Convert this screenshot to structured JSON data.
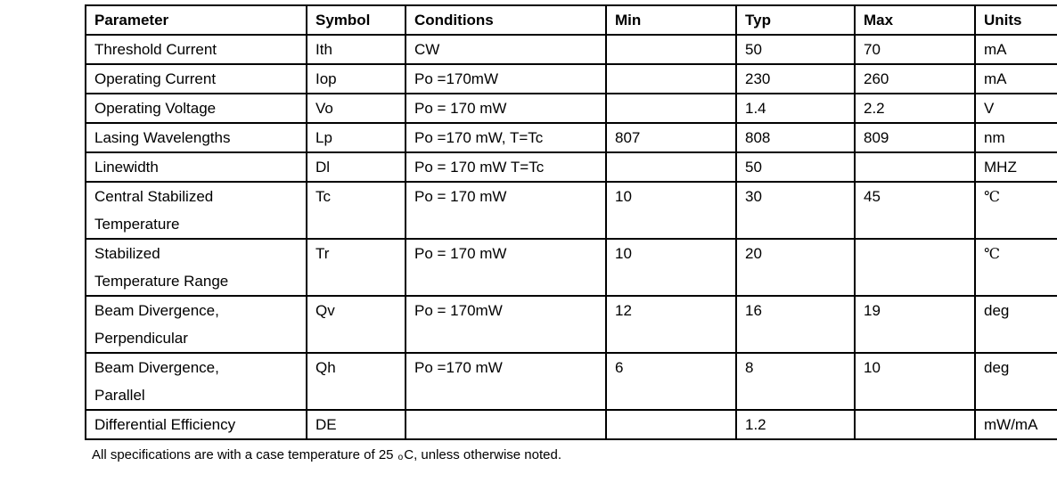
{
  "table": {
    "headers": {
      "parameter": "Parameter",
      "symbol": "Symbol",
      "conditions": "Conditions",
      "min": "Min",
      "typ": "Typ",
      "max": "Max",
      "units": "Units"
    },
    "rows": [
      {
        "p1": "Threshold Current",
        "p2": "",
        "symbol": "Ith",
        "conditions": "CW",
        "min": "",
        "typ": "50",
        "max": "70",
        "units": "mA"
      },
      {
        "p1": "Operating Current",
        "p2": "",
        "symbol": "Iop",
        "conditions": "Po =170mW",
        "min": "",
        "typ": "230",
        "max": "260",
        "units": "mA"
      },
      {
        "p1": "Operating Voltage",
        "p2": "",
        "symbol": "Vo",
        "conditions": "Po = 170 mW",
        "min": "",
        "typ": "1.4",
        "max": "2.2",
        "units": "V"
      },
      {
        "p1": "Lasing Wavelengths",
        "p2": "",
        "symbol": "Lp",
        "conditions": "Po =170 mW, T=Tc",
        "min": "807",
        "typ": "808",
        "max": "809",
        "units": "nm"
      },
      {
        "p1": "Linewidth",
        "p2": "",
        "symbol": "Dl",
        "conditions": "Po = 170 mW T=Tc",
        "min": "",
        "typ": "50",
        "max": "",
        "units": "MHZ"
      },
      {
        "p1": "Central Stabilized",
        "p2": "Temperature",
        "symbol": "Tc",
        "conditions": "Po = 170 mW",
        "min": "10",
        "typ": "30",
        "max": "45",
        "units": "℃"
      },
      {
        "p1": "Stabilized",
        "p2": "Temperature Range",
        "symbol": "Tr",
        "conditions": "Po = 170 mW",
        "min": "10",
        "typ": "20",
        "max": "",
        "units": "℃"
      },
      {
        "p1": "Beam Divergence,",
        "p2": "Perpendicular",
        "symbol": "Qv",
        "conditions": "Po = 170mW",
        "min": "12",
        "typ": "16",
        "max": "19",
        "units": "deg"
      },
      {
        "p1": "Beam Divergence,",
        "p2": "Parallel",
        "symbol": "Qh",
        "conditions": "Po =170 mW",
        "min": "6",
        "typ": "8",
        "max": "10",
        "units": "deg"
      },
      {
        "p1": "Differential Efficiency",
        "p2": "",
        "symbol": "DE",
        "conditions": "",
        "min": "",
        "typ": "1.2",
        "max": "",
        "units": "mW/mA"
      }
    ]
  },
  "footnote": {
    "prefix": "All specifications are with a case temperature of 25 ",
    "degree_mark": "o",
    "suffix": "C, unless otherwise noted."
  }
}
